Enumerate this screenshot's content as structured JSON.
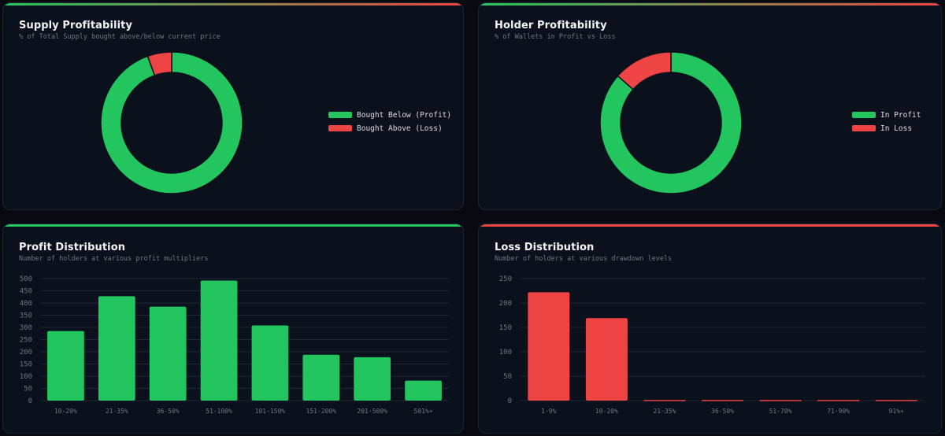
{
  "colors": {
    "profit": "#22c55e",
    "loss": "#ef4444",
    "grid": "#1e2838",
    "tick": "#6b7686",
    "bg": "#0b111c"
  },
  "supply": {
    "title": "Supply Profitability",
    "subtitle": "% of Total Supply bought above/below current price",
    "legend": [
      "Bought Below (Profit)",
      "Bought Above (Loss)"
    ]
  },
  "holder": {
    "title": "Holder Profitability",
    "subtitle": "% of Wallets in Profit vs Loss",
    "legend": [
      "In Profit",
      "In Loss"
    ]
  },
  "profit": {
    "title": "Profit Distribution",
    "subtitle": "Number of holders at various profit multipliers"
  },
  "loss": {
    "title": "Loss Distribution",
    "subtitle": "Number of holders at various drawdown levels"
  },
  "chart_data": [
    {
      "id": "supply",
      "type": "pie",
      "title": "Supply Profitability",
      "labels": [
        "Bought Below (Profit)",
        "Bought Above (Loss)"
      ],
      "values": [
        94.5,
        5.5
      ],
      "colors": [
        "#22c55e",
        "#ef4444"
      ]
    },
    {
      "id": "holder",
      "type": "pie",
      "title": "Holder Profitability",
      "labels": [
        "In Profit",
        "In Loss"
      ],
      "values": [
        86.5,
        13.5
      ],
      "colors": [
        "#22c55e",
        "#ef4444"
      ]
    },
    {
      "id": "profit",
      "type": "bar",
      "title": "Profit Distribution",
      "categories": [
        "10-20%",
        "21-35%",
        "36-50%",
        "51-100%",
        "101-150%",
        "151-200%",
        "201-500%",
        "501%+"
      ],
      "values": [
        285,
        428,
        385,
        492,
        308,
        188,
        178,
        82
      ],
      "ylim": [
        0,
        500
      ],
      "yticks": [
        0,
        50,
        100,
        150,
        200,
        250,
        300,
        350,
        400,
        450,
        500
      ],
      "color": "#22c55e"
    },
    {
      "id": "loss",
      "type": "bar",
      "title": "Loss Distribution",
      "categories": [
        "1-9%",
        "10-20%",
        "21-35%",
        "36-50%",
        "51-70%",
        "71-90%",
        "91%+"
      ],
      "values": [
        222,
        169,
        0,
        0,
        0,
        0,
        0
      ],
      "ylim": [
        0,
        250
      ],
      "yticks": [
        0,
        50,
        100,
        150,
        200,
        250
      ],
      "color": "#ef4444"
    }
  ]
}
